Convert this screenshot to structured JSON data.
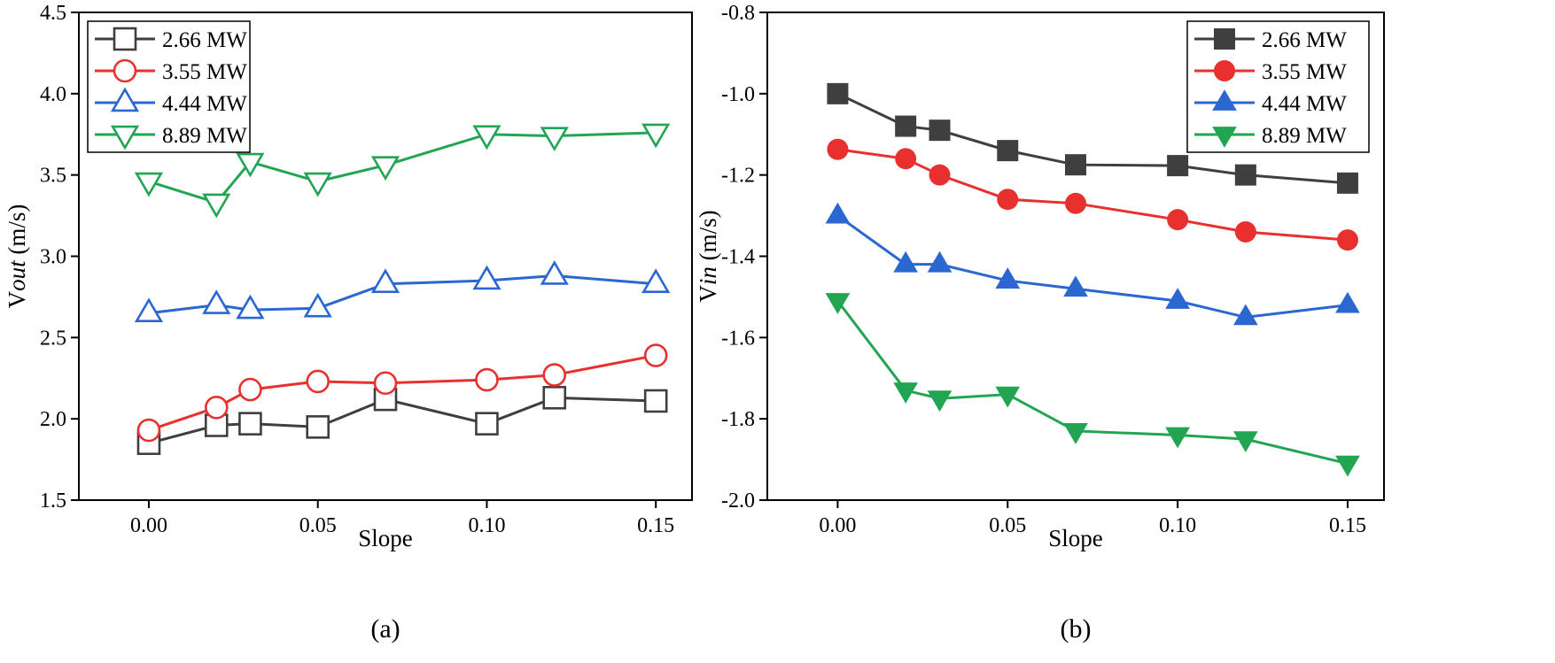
{
  "chart_data": [
    {
      "type": "line",
      "panel_label": "(a)",
      "xlabel": "Slope",
      "ylabel_prefix": "V",
      "ylabel_italic": "out",
      "ylabel_suffix": " (m/s)",
      "xlim": [
        -0.0207,
        0.1607
      ],
      "ylim": [
        1.5,
        4.5
      ],
      "xticks": [
        0.0,
        0.05,
        0.1,
        0.15
      ],
      "xtick_labels": [
        "0.00",
        "0.05",
        "0.10",
        "0.15"
      ],
      "yticks": [
        1.5,
        2.0,
        2.5,
        3.0,
        3.5,
        4.0,
        4.5
      ],
      "ytick_labels": [
        "1.5",
        "2.0",
        "2.5",
        "3.0",
        "3.5",
        "4.0",
        "4.5"
      ],
      "legend_position": "top-left",
      "marker_fill": "open",
      "x": [
        0.0,
        0.02,
        0.03,
        0.05,
        0.07,
        0.1,
        0.12,
        0.15
      ],
      "series": [
        {
          "name": "2.66 MW",
          "color": "#3f3f3f",
          "marker": "square",
          "values": [
            1.85,
            1.96,
            1.97,
            1.95,
            2.12,
            1.97,
            2.13,
            2.11
          ]
        },
        {
          "name": "3.55 MW",
          "color": "#e8312f",
          "marker": "circle",
          "values": [
            1.93,
            2.07,
            2.18,
            2.23,
            2.22,
            2.24,
            2.27,
            2.39
          ]
        },
        {
          "name": "4.44 MW",
          "color": "#2a67d0",
          "marker": "triangle-up",
          "values": [
            2.65,
            2.7,
            2.67,
            2.68,
            2.83,
            2.85,
            2.88,
            2.83
          ]
        },
        {
          "name": "8.89 MW",
          "color": "#22a553",
          "marker": "triangle-down",
          "values": [
            3.46,
            3.33,
            3.58,
            3.46,
            3.56,
            3.75,
            3.74,
            3.76
          ]
        }
      ]
    },
    {
      "type": "line",
      "panel_label": "(b)",
      "xlabel": "Slope",
      "ylabel_prefix": "V",
      "ylabel_italic": "in",
      "ylabel_suffix": " (m/s)",
      "xlim": [
        -0.0207,
        0.1607
      ],
      "ylim": [
        -2.0,
        -0.8
      ],
      "xticks": [
        0.0,
        0.05,
        0.1,
        0.15
      ],
      "xtick_labels": [
        "0.00",
        "0.05",
        "0.10",
        "0.15"
      ],
      "yticks": [
        -2.0,
        -1.8,
        -1.6,
        -1.4,
        -1.2,
        -1.0,
        -0.8
      ],
      "ytick_labels": [
        "-2.0",
        "-1.8",
        "-1.6",
        "-1.4",
        "-1.2",
        "-1.0",
        "-0.8"
      ],
      "legend_position": "top-right",
      "marker_fill": "filled",
      "x": [
        0.0,
        0.02,
        0.03,
        0.05,
        0.07,
        0.1,
        0.12,
        0.15
      ],
      "series": [
        {
          "name": "2.66 MW",
          "color": "#3f3f3f",
          "marker": "square",
          "values": [
            -1.0,
            -1.08,
            -1.09,
            -1.14,
            -1.175,
            -1.177,
            -1.2,
            -1.22
          ]
        },
        {
          "name": "3.55 MW",
          "color": "#e8312f",
          "marker": "circle",
          "values": [
            -1.137,
            -1.16,
            -1.2,
            -1.26,
            -1.27,
            -1.31,
            -1.34,
            -1.36
          ]
        },
        {
          "name": "4.44 MW",
          "color": "#2a67d0",
          "marker": "triangle-up",
          "values": [
            -1.3,
            -1.42,
            -1.42,
            -1.46,
            -1.48,
            -1.51,
            -1.55,
            -1.52
          ]
        },
        {
          "name": "8.89 MW",
          "color": "#22a553",
          "marker": "triangle-down",
          "values": [
            -1.51,
            -1.73,
            -1.75,
            -1.74,
            -1.83,
            -1.84,
            -1.85,
            -1.91
          ]
        }
      ]
    }
  ]
}
